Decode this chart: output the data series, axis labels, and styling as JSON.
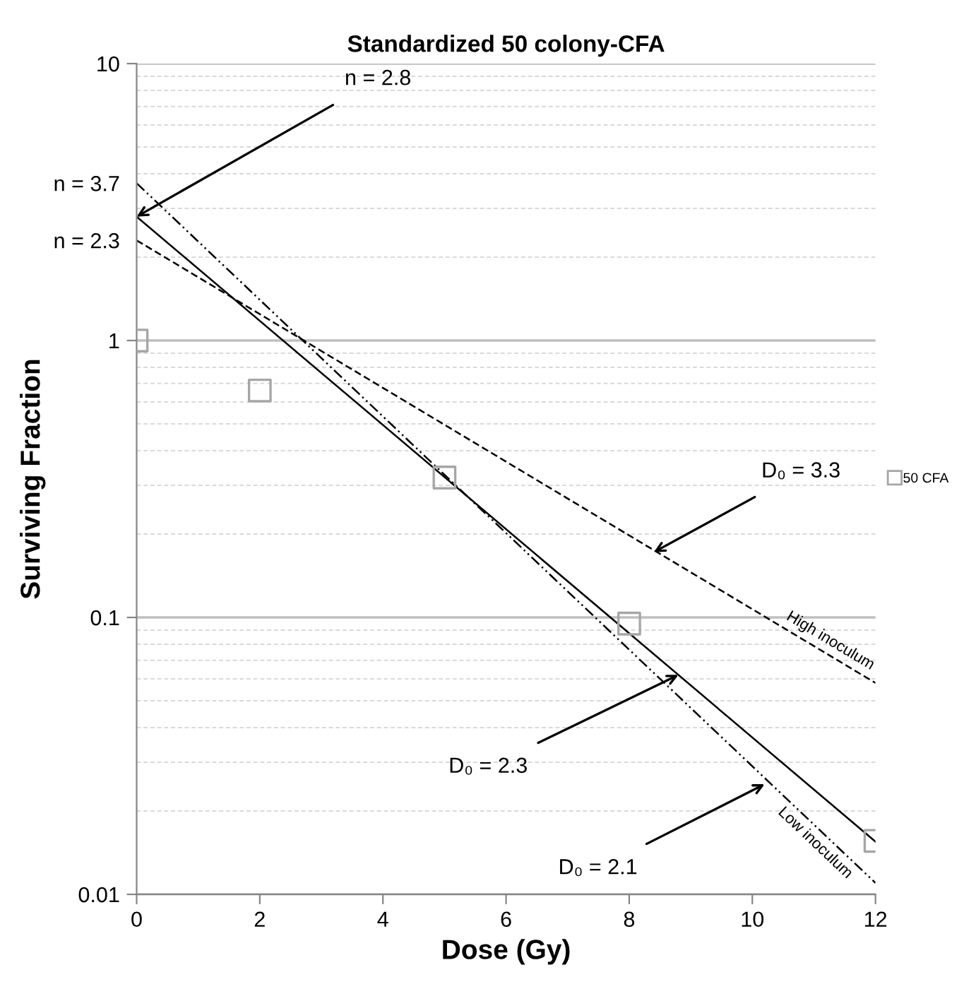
{
  "chart_data": {
    "type": "scatter",
    "title": "Standardized 50 colony-CFA",
    "xlabel": "Dose (Gy)",
    "ylabel": "Surviving Fraction",
    "log": "y",
    "xlim": [
      0,
      12
    ],
    "xticks": [
      0,
      2,
      4,
      6,
      8,
      10,
      12
    ],
    "ylim": [
      0.01,
      10
    ],
    "yticks": [
      0.01,
      0.1,
      1,
      {
        "value": 2.3,
        "label": "n = 2.3"
      },
      {
        "value": 3.7,
        "label": "n = 3.7"
      },
      10
    ],
    "grid": "y",
    "legend": "right",
    "series": [
      {
        "name": "50 CFA",
        "marker": "square",
        "color": "#a6a6a6",
        "x": [
          0,
          2,
          5,
          8,
          12
        ],
        "values": [
          1.0,
          0.66,
          0.32,
          0.095,
          0.0156
        ]
      },
      {
        "type": "line",
        "color": "#000000",
        "line_style": "solid",
        "x": [
          0,
          12
        ],
        "values": [
          2.8,
          0.0155
        ]
      },
      {
        "name": "High inoculum",
        "type": "line",
        "color": "#000000",
        "line_style": "dashed",
        "x": [
          0,
          12
        ],
        "values": [
          2.3,
          0.058
        ]
      },
      {
        "name": "Low inoculum",
        "type": "line",
        "color": "#000000",
        "line_style": "dashdot",
        "x": [
          0,
          12
        ],
        "values": [
          3.7,
          0.011
        ]
      }
    ],
    "annotations": [
      {
        "text": "n = 2.8",
        "x": 0,
        "y": 2.8
      },
      {
        "text": "D₀ = 3.3",
        "x": 8.4,
        "y": 0.172
      },
      {
        "text": "D₀ = 2.3",
        "x": 8.8,
        "y": 0.062
      },
      {
        "text": "D₀ = 2.1",
        "x": 10.2,
        "y": 0.025
      }
    ]
  }
}
